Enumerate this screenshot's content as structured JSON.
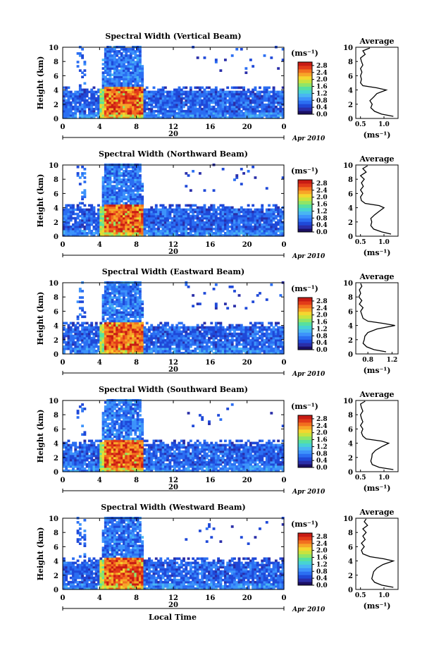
{
  "page": {
    "xlabel": "Local Time",
    "date_label": "Apr 2010",
    "day_label": "20",
    "units_label": "(ms⁻¹)"
  },
  "colorscale": {
    "ticks": [
      "0.0",
      "0.4",
      "0.8",
      "1.2",
      "1.6",
      "2.0",
      "2.4",
      "2.8"
    ],
    "colors": [
      "#1b0f63",
      "#2a2ea8",
      "#1f49d8",
      "#2b6ef2",
      "#3d93fb",
      "#49b6f2",
      "#47d3d3",
      "#57e0a0",
      "#8fe568",
      "#c8e33e",
      "#f4d62f",
      "#f7a528",
      "#f2701f",
      "#e23b19",
      "#c81b14"
    ]
  },
  "chart_data": [
    {
      "type": "heatmap",
      "title": "Spectral Width (Vertical Beam)",
      "xlabel": "Local Time",
      "ylabel": "Height (km)",
      "xlim": [
        0,
        24
      ],
      "ylim": [
        0,
        10
      ],
      "xticks": [
        "0",
        "4",
        "8",
        "12",
        "16",
        "20",
        "0"
      ],
      "yticks": [
        "0",
        "2",
        "4",
        "6",
        "8",
        "10"
      ],
      "date": "20 Apr 2010",
      "colorbar_label": "(ms⁻¹)",
      "colorbar_ticks": [
        "0.0",
        "0.4",
        "0.8",
        "1.2",
        "1.6",
        "2.0",
        "2.4",
        "2.8"
      ],
      "clim": [
        0,
        3.0
      ],
      "profile": {
        "title": "Average",
        "xlabel": "(ms⁻¹)",
        "xticks": [
          "0.5",
          "1.0"
        ],
        "xlim": [
          0.4,
          1.3
        ],
        "heights": [
          0.3,
          0.6,
          1,
          1.5,
          2,
          2.5,
          3,
          3.5,
          4,
          4.3,
          4.6,
          5,
          5.5,
          6,
          6.5,
          7,
          7.5,
          8,
          8.5,
          9,
          9.5,
          9.9
        ],
        "values": [
          1.2,
          0.95,
          0.8,
          0.72,
          0.75,
          0.7,
          0.78,
          0.85,
          1.05,
          0.85,
          0.55,
          0.5,
          0.52,
          0.5,
          0.53,
          0.5,
          0.55,
          0.52,
          0.5,
          0.6,
          0.55,
          0.7
        ]
      }
    },
    {
      "type": "heatmap",
      "title": "Spectral Width (Northward Beam)",
      "xlabel": "Local Time",
      "ylabel": "Height (km)",
      "xlim": [
        0,
        24
      ],
      "ylim": [
        0,
        10
      ],
      "xticks": [
        "0",
        "4",
        "8",
        "12",
        "16",
        "20",
        "0"
      ],
      "yticks": [
        "0",
        "2",
        "4",
        "6",
        "8",
        "10"
      ],
      "date": "20 Apr 2010",
      "colorbar_label": "(ms⁻¹)",
      "colorbar_ticks": [
        "0.0",
        "0.4",
        "0.8",
        "1.2",
        "1.6",
        "2.0",
        "2.4",
        "2.8"
      ],
      "clim": [
        0,
        3.0
      ],
      "profile": {
        "title": "Average",
        "xlabel": "(ms⁻¹)",
        "xticks": [
          "0.5",
          "1.0"
        ],
        "xlim": [
          0.4,
          1.3
        ],
        "heights": [
          0.3,
          0.6,
          1,
          1.5,
          2,
          2.5,
          3,
          3.5,
          4,
          4.3,
          4.6,
          5,
          5.5,
          6,
          6.5,
          7,
          7.5,
          8,
          8.5,
          9,
          9.5,
          9.9
        ],
        "values": [
          1.15,
          0.95,
          0.78,
          0.72,
          0.74,
          0.72,
          0.8,
          0.9,
          1.0,
          0.9,
          0.6,
          0.52,
          0.5,
          0.55,
          0.5,
          0.56,
          0.52,
          0.58,
          0.5,
          0.62,
          0.55,
          0.65
        ]
      }
    },
    {
      "type": "heatmap",
      "title": "Spectral Width (Eastward Beam)",
      "xlabel": "Local Time",
      "ylabel": "Height (km)",
      "xlim": [
        0,
        24
      ],
      "ylim": [
        0,
        10
      ],
      "xticks": [
        "0",
        "4",
        "8",
        "12",
        "16",
        "20",
        "0"
      ],
      "yticks": [
        "0",
        "2",
        "4",
        "6",
        "8",
        "10"
      ],
      "date": "20 Apr 2010",
      "colorbar_label": "(ms⁻¹)",
      "colorbar_ticks": [
        "0.0",
        "0.4",
        "0.8",
        "1.2",
        "1.6",
        "2.0",
        "2.4",
        "2.8"
      ],
      "clim": [
        0,
        3.0
      ],
      "profile": {
        "title": "Average",
        "xlabel": "(ms⁻¹)",
        "xticks": [
          "0.8",
          "1.2"
        ],
        "xlim": [
          0.6,
          1.3
        ],
        "heights": [
          0.3,
          0.6,
          1,
          1.5,
          2,
          2.5,
          3,
          3.5,
          4,
          4.3,
          4.6,
          5,
          5.5,
          6,
          6.5,
          7,
          7.5,
          8,
          8.5,
          9,
          9.5,
          9.9
        ],
        "values": [
          1.1,
          0.9,
          0.78,
          0.72,
          0.74,
          0.75,
          0.8,
          0.95,
          1.25,
          1.05,
          0.8,
          0.72,
          0.7,
          0.68,
          0.72,
          0.66,
          0.7,
          0.65,
          0.68,
          0.66,
          0.7,
          0.68
        ]
      }
    },
    {
      "type": "heatmap",
      "title": "Spectral Width (Southward Beam)",
      "xlabel": "Local Time",
      "ylabel": "Height (km)",
      "xlim": [
        0,
        24
      ],
      "ylim": [
        0,
        10
      ],
      "xticks": [
        "0",
        "4",
        "8",
        "12",
        "16",
        "20",
        "0"
      ],
      "yticks": [
        "0",
        "2",
        "4",
        "6",
        "8",
        "10"
      ],
      "date": "20 Apr 2010",
      "colorbar_label": "(ms⁻¹)",
      "colorbar_ticks": [
        "0.0",
        "0.4",
        "0.8",
        "1.2",
        "1.6",
        "2.0",
        "2.4",
        "2.8"
      ],
      "clim": [
        0,
        3.0
      ],
      "profile": {
        "title": "Average",
        "xlabel": "(ms⁻¹)",
        "xticks": [
          "0.5",
          "1.0"
        ],
        "xlim": [
          0.4,
          1.3
        ],
        "heights": [
          0.3,
          0.6,
          1,
          1.5,
          2,
          2.5,
          3,
          3.5,
          4,
          4.3,
          4.6,
          5,
          5.5,
          6,
          6.5,
          7,
          7.5,
          8,
          8.5,
          9,
          9.5,
          9.9
        ],
        "values": [
          1.2,
          0.9,
          0.75,
          0.72,
          0.74,
          0.75,
          0.82,
          0.95,
          1.1,
          0.95,
          0.62,
          0.55,
          0.52,
          0.55,
          0.5,
          0.55,
          0.52,
          0.5,
          0.55,
          0.52,
          0.5,
          0.6
        ]
      }
    },
    {
      "type": "heatmap",
      "title": "Spectral Width (Westward Beam)",
      "xlabel": "Local Time",
      "ylabel": "Height (km)",
      "xlim": [
        0,
        24
      ],
      "ylim": [
        0,
        10
      ],
      "xticks": [
        "0",
        "4",
        "8",
        "12",
        "16",
        "20",
        "0"
      ],
      "yticks": [
        "0",
        "2",
        "4",
        "6",
        "8",
        "10"
      ],
      "date": "20 Apr 2010",
      "colorbar_label": "(ms⁻¹)",
      "colorbar_ticks": [
        "0.0",
        "0.4",
        "0.8",
        "1.2",
        "1.6",
        "2.0",
        "2.4",
        "2.8"
      ],
      "clim": [
        0,
        3.0
      ],
      "profile": {
        "title": "Average",
        "xlabel": "(ms⁻¹)",
        "xticks": [
          "0.5",
          "1.0"
        ],
        "xlim": [
          0.4,
          1.3
        ],
        "heights": [
          0.3,
          0.6,
          1,
          1.5,
          2,
          2.5,
          3,
          3.5,
          4,
          4.3,
          4.6,
          5,
          5.5,
          6,
          6.5,
          7,
          7.5,
          8,
          8.5,
          9,
          9.5,
          9.9
        ],
        "values": [
          1.2,
          0.95,
          0.8,
          0.74,
          0.76,
          0.78,
          0.85,
          0.98,
          1.2,
          1.0,
          0.7,
          0.55,
          0.52,
          0.58,
          0.52,
          0.6,
          0.55,
          0.62,
          0.55,
          0.65,
          0.58,
          0.62
        ]
      }
    }
  ]
}
